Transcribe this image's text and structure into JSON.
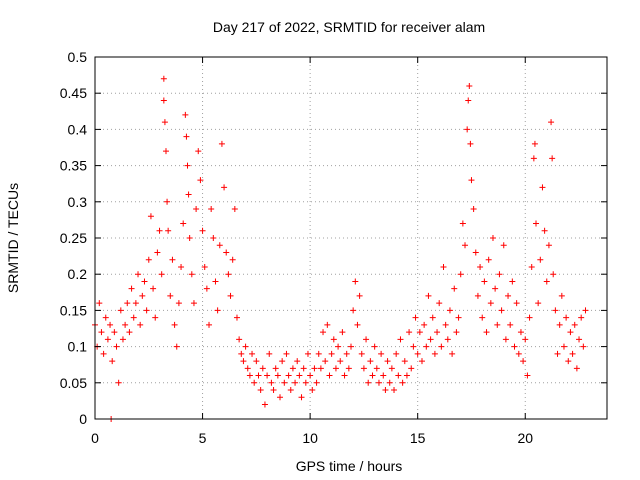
{
  "chart_data": {
    "type": "scatter",
    "title": "Day 217 of 2022, SRMTID for receiver alam",
    "xlabel": "GPS time / hours",
    "ylabel": "SRMTID / TECUs",
    "xlim": [
      0,
      23.8
    ],
    "ylim": [
      0,
      0.5
    ],
    "xticks": [
      0,
      5,
      10,
      15,
      20
    ],
    "xtick_labels": [
      "0",
      "5",
      "10",
      "15",
      "20"
    ],
    "yticks": [
      0,
      0.05,
      0.1,
      0.15,
      0.2,
      0.25,
      0.3,
      0.35,
      0.4,
      0.45,
      0.5
    ],
    "ytick_labels": [
      "0",
      "0.05",
      "0.1",
      "0.15",
      "0.2",
      "0.25",
      "0.3",
      "0.35",
      "0.4",
      "0.45",
      "0.5"
    ],
    "grid": true,
    "marker": "+",
    "marker_color": "#ff0000",
    "series": [
      {
        "name": "SRMTID",
        "points": [
          [
            0.0,
            0.13
          ],
          [
            0.1,
            0.1
          ],
          [
            0.2,
            0.16
          ],
          [
            0.3,
            0.12
          ],
          [
            0.4,
            0.09
          ],
          [
            0.5,
            0.14
          ],
          [
            0.6,
            0.11
          ],
          [
            0.7,
            0.13
          ],
          [
            0.75,
            0.0
          ],
          [
            0.8,
            0.08
          ],
          [
            0.9,
            0.12
          ],
          [
            1.0,
            0.1
          ],
          [
            1.1,
            0.05
          ],
          [
            1.2,
            0.15
          ],
          [
            1.3,
            0.11
          ],
          [
            1.4,
            0.13
          ],
          [
            1.5,
            0.16
          ],
          [
            1.6,
            0.12
          ],
          [
            1.7,
            0.18
          ],
          [
            1.8,
            0.14
          ],
          [
            1.9,
            0.16
          ],
          [
            2.0,
            0.2
          ],
          [
            2.1,
            0.13
          ],
          [
            2.2,
            0.17
          ],
          [
            2.3,
            0.19
          ],
          [
            2.4,
            0.15
          ],
          [
            2.5,
            0.22
          ],
          [
            2.6,
            0.28
          ],
          [
            2.7,
            0.18
          ],
          [
            2.8,
            0.14
          ],
          [
            2.9,
            0.23
          ],
          [
            3.0,
            0.26
          ],
          [
            3.1,
            0.2
          ],
          [
            3.2,
            0.47
          ],
          [
            3.2,
            0.44
          ],
          [
            3.25,
            0.41
          ],
          [
            3.3,
            0.37
          ],
          [
            3.35,
            0.3
          ],
          [
            3.4,
            0.26
          ],
          [
            3.5,
            0.17
          ],
          [
            3.6,
            0.22
          ],
          [
            3.7,
            0.13
          ],
          [
            3.8,
            0.1
          ],
          [
            3.9,
            0.16
          ],
          [
            4.0,
            0.21
          ],
          [
            4.1,
            0.27
          ],
          [
            4.2,
            0.42
          ],
          [
            4.25,
            0.39
          ],
          [
            4.3,
            0.35
          ],
          [
            4.35,
            0.31
          ],
          [
            4.4,
            0.25
          ],
          [
            4.5,
            0.2
          ],
          [
            4.6,
            0.16
          ],
          [
            4.7,
            0.29
          ],
          [
            4.8,
            0.37
          ],
          [
            4.9,
            0.33
          ],
          [
            5.0,
            0.26
          ],
          [
            5.1,
            0.21
          ],
          [
            5.2,
            0.18
          ],
          [
            5.3,
            0.13
          ],
          [
            5.4,
            0.29
          ],
          [
            5.5,
            0.25
          ],
          [
            5.6,
            0.19
          ],
          [
            5.7,
            0.15
          ],
          [
            5.8,
            0.24
          ],
          [
            5.9,
            0.38
          ],
          [
            6.0,
            0.32
          ],
          [
            6.1,
            0.23
          ],
          [
            6.2,
            0.2
          ],
          [
            6.3,
            0.17
          ],
          [
            6.4,
            0.22
          ],
          [
            6.5,
            0.29
          ],
          [
            6.6,
            0.14
          ],
          [
            6.7,
            0.11
          ],
          [
            6.8,
            0.09
          ],
          [
            6.9,
            0.08
          ],
          [
            7.0,
            0.1
          ],
          [
            7.1,
            0.07
          ],
          [
            7.2,
            0.06
          ],
          [
            7.3,
            0.09
          ],
          [
            7.4,
            0.05
          ],
          [
            7.5,
            0.08
          ],
          [
            7.6,
            0.06
          ],
          [
            7.7,
            0.04
          ],
          [
            7.8,
            0.07
          ],
          [
            7.9,
            0.02
          ],
          [
            8.0,
            0.06
          ],
          [
            8.1,
            0.09
          ],
          [
            8.2,
            0.05
          ],
          [
            8.3,
            0.04
          ],
          [
            8.4,
            0.07
          ],
          [
            8.5,
            0.06
          ],
          [
            8.6,
            0.03
          ],
          [
            8.7,
            0.08
          ],
          [
            8.8,
            0.05
          ],
          [
            8.9,
            0.09
          ],
          [
            9.0,
            0.06
          ],
          [
            9.1,
            0.04
          ],
          [
            9.2,
            0.07
          ],
          [
            9.3,
            0.05
          ],
          [
            9.4,
            0.08
          ],
          [
            9.5,
            0.06
          ],
          [
            9.6,
            0.03
          ],
          [
            9.7,
            0.07
          ],
          [
            9.8,
            0.05
          ],
          [
            9.9,
            0.09
          ],
          [
            10.0,
            0.06
          ],
          [
            10.1,
            0.04
          ],
          [
            10.2,
            0.07
          ],
          [
            10.3,
            0.05
          ],
          [
            10.4,
            0.09
          ],
          [
            10.5,
            0.07
          ],
          [
            10.6,
            0.12
          ],
          [
            10.7,
            0.08
          ],
          [
            10.8,
            0.13
          ],
          [
            10.9,
            0.06
          ],
          [
            11.0,
            0.09
          ],
          [
            11.1,
            0.11
          ],
          [
            11.2,
            0.07
          ],
          [
            11.3,
            0.1
          ],
          [
            11.4,
            0.08
          ],
          [
            11.5,
            0.12
          ],
          [
            11.6,
            0.06
          ],
          [
            11.7,
            0.09
          ],
          [
            11.8,
            0.07
          ],
          [
            11.9,
            0.1
          ],
          [
            12.0,
            0.15
          ],
          [
            12.1,
            0.19
          ],
          [
            12.2,
            0.13
          ],
          [
            12.3,
            0.17
          ],
          [
            12.4,
            0.09
          ],
          [
            12.5,
            0.07
          ],
          [
            12.6,
            0.11
          ],
          [
            12.7,
            0.05
          ],
          [
            12.8,
            0.08
          ],
          [
            12.9,
            0.06
          ],
          [
            13.0,
            0.1
          ],
          [
            13.1,
            0.07
          ],
          [
            13.2,
            0.05
          ],
          [
            13.3,
            0.09
          ],
          [
            13.4,
            0.06
          ],
          [
            13.5,
            0.04
          ],
          [
            13.6,
            0.08
          ],
          [
            13.7,
            0.05
          ],
          [
            13.8,
            0.07
          ],
          [
            13.9,
            0.04
          ],
          [
            14.0,
            0.09
          ],
          [
            14.1,
            0.06
          ],
          [
            14.2,
            0.11
          ],
          [
            14.3,
            0.05
          ],
          [
            14.4,
            0.08
          ],
          [
            14.5,
            0.06
          ],
          [
            14.6,
            0.12
          ],
          [
            14.7,
            0.07
          ],
          [
            14.8,
            0.1
          ],
          [
            14.9,
            0.14
          ],
          [
            15.0,
            0.09
          ],
          [
            15.1,
            0.12
          ],
          [
            15.2,
            0.08
          ],
          [
            15.3,
            0.13
          ],
          [
            15.4,
            0.1
          ],
          [
            15.5,
            0.17
          ],
          [
            15.6,
            0.11
          ],
          [
            15.7,
            0.14
          ],
          [
            15.8,
            0.09
          ],
          [
            15.9,
            0.12
          ],
          [
            16.0,
            0.16
          ],
          [
            16.1,
            0.1
          ],
          [
            16.2,
            0.21
          ],
          [
            16.3,
            0.13
          ],
          [
            16.4,
            0.11
          ],
          [
            16.5,
            0.15
          ],
          [
            16.6,
            0.09
          ],
          [
            16.7,
            0.18
          ],
          [
            16.8,
            0.12
          ],
          [
            16.9,
            0.14
          ],
          [
            17.0,
            0.2
          ],
          [
            17.1,
            0.27
          ],
          [
            17.2,
            0.24
          ],
          [
            17.3,
            0.4
          ],
          [
            17.35,
            0.44
          ],
          [
            17.4,
            0.46
          ],
          [
            17.45,
            0.38
          ],
          [
            17.5,
            0.33
          ],
          [
            17.6,
            0.29
          ],
          [
            17.7,
            0.23
          ],
          [
            17.8,
            0.17
          ],
          [
            17.9,
            0.21
          ],
          [
            18.0,
            0.14
          ],
          [
            18.1,
            0.19
          ],
          [
            18.2,
            0.12
          ],
          [
            18.3,
            0.22
          ],
          [
            18.4,
            0.16
          ],
          [
            18.5,
            0.25
          ],
          [
            18.6,
            0.18
          ],
          [
            18.7,
            0.13
          ],
          [
            18.8,
            0.2
          ],
          [
            18.9,
            0.15
          ],
          [
            19.0,
            0.24
          ],
          [
            19.1,
            0.11
          ],
          [
            19.2,
            0.17
          ],
          [
            19.3,
            0.13
          ],
          [
            19.4,
            0.19
          ],
          [
            19.5,
            0.1
          ],
          [
            19.6,
            0.16
          ],
          [
            19.7,
            0.09
          ],
          [
            19.8,
            0.12
          ],
          [
            19.9,
            0.08
          ],
          [
            20.0,
            0.11
          ],
          [
            20.1,
            0.06
          ],
          [
            20.2,
            0.14
          ],
          [
            20.3,
            0.21
          ],
          [
            20.4,
            0.36
          ],
          [
            20.45,
            0.38
          ],
          [
            20.5,
            0.27
          ],
          [
            20.6,
            0.16
          ],
          [
            20.7,
            0.22
          ],
          [
            20.8,
            0.32
          ],
          [
            20.9,
            0.26
          ],
          [
            21.0,
            0.19
          ],
          [
            21.1,
            0.24
          ],
          [
            21.2,
            0.41
          ],
          [
            21.25,
            0.36
          ],
          [
            21.3,
            0.2
          ],
          [
            21.4,
            0.15
          ],
          [
            21.5,
            0.09
          ],
          [
            21.6,
            0.13
          ],
          [
            21.7,
            0.17
          ],
          [
            21.8,
            0.1
          ],
          [
            21.9,
            0.14
          ],
          [
            22.0,
            0.08
          ],
          [
            22.1,
            0.12
          ],
          [
            22.2,
            0.09
          ],
          [
            22.3,
            0.13
          ],
          [
            22.4,
            0.07
          ],
          [
            22.5,
            0.11
          ],
          [
            22.6,
            0.14
          ],
          [
            22.7,
            0.1
          ],
          [
            22.8,
            0.15
          ]
        ]
      }
    ]
  }
}
